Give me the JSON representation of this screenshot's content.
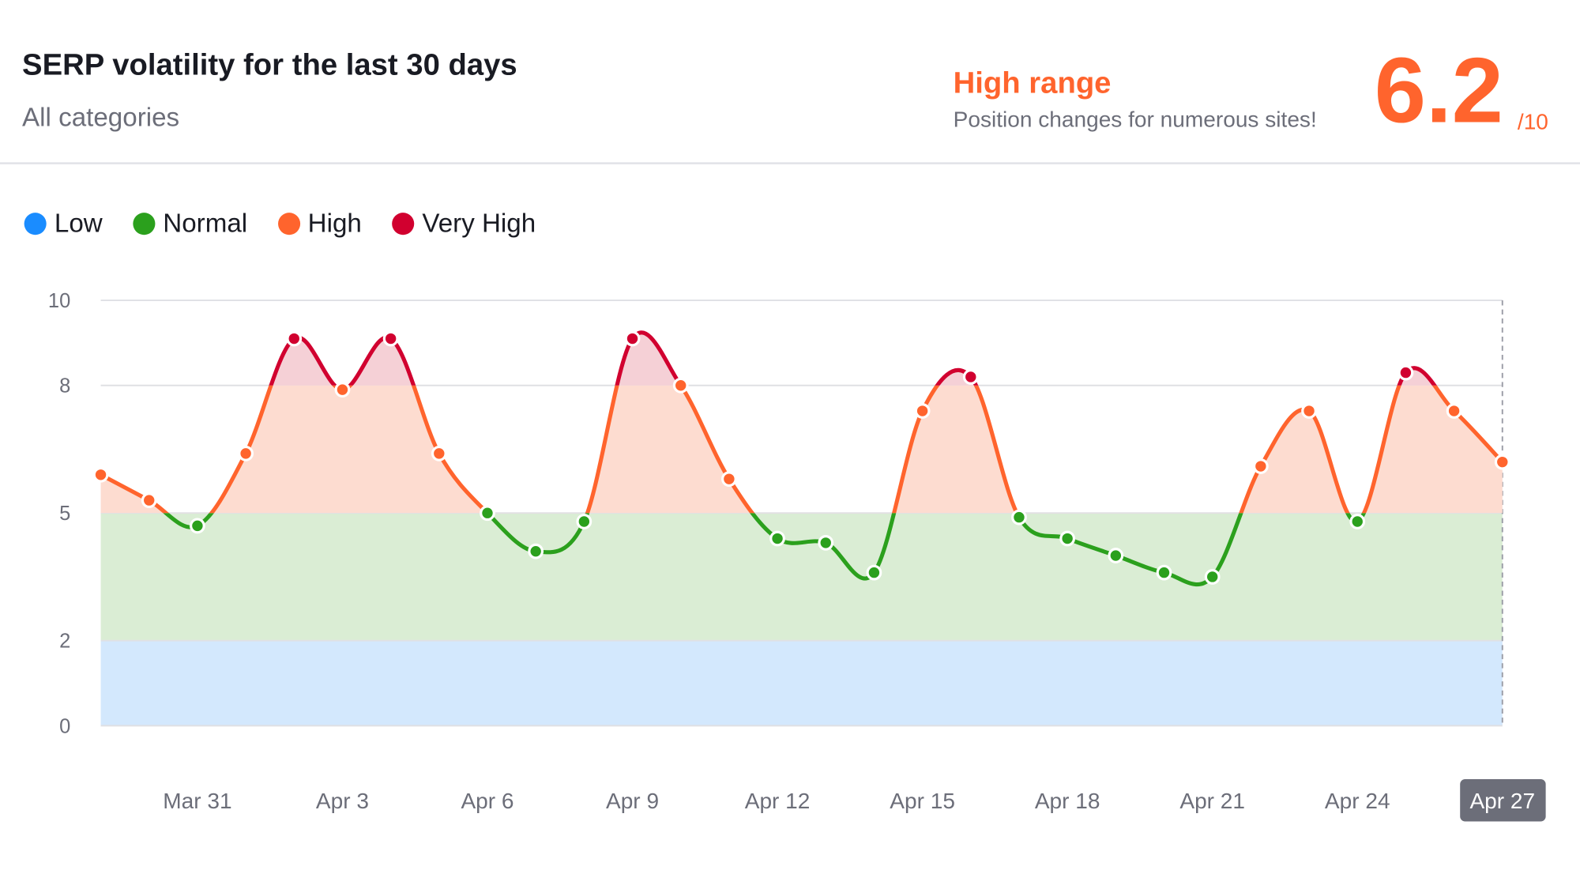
{
  "header": {
    "title": "SERP volatility for the last 30 days",
    "subtitle": "All categories",
    "range_label": "High range",
    "range_description": "Position changes for numerous sites!",
    "score": "6.2",
    "score_max": "/10"
  },
  "colors": {
    "low": "#1a8cff",
    "normal": "#2ba01d",
    "high": "#ff642d",
    "very_high": "#d1002f"
  },
  "chart_data": {
    "type": "line",
    "title": "SERP volatility for the last 30 days",
    "legend": [
      "Low",
      "Normal",
      "High",
      "Very High"
    ],
    "legend_position": "top-left",
    "ylim": [
      0,
      10
    ],
    "y_ticks": [
      "0",
      "2",
      "5",
      "8",
      "10"
    ],
    "bands": [
      {
        "name": "Low",
        "from": 0,
        "to": 2
      },
      {
        "name": "Normal",
        "from": 2,
        "to": 5
      },
      {
        "name": "High",
        "from": 5,
        "to": 8
      },
      {
        "name": "Very High",
        "from": 8,
        "to": 10
      }
    ],
    "x": [
      "Mar 29",
      "Mar 30",
      "Mar 31",
      "Apr 1",
      "Apr 2",
      "Apr 3",
      "Apr 4",
      "Apr 5",
      "Apr 6",
      "Apr 7",
      "Apr 8",
      "Apr 9",
      "Apr 10",
      "Apr 11",
      "Apr 12",
      "Apr 13",
      "Apr 14",
      "Apr 15",
      "Apr 16",
      "Apr 17",
      "Apr 18",
      "Apr 19",
      "Apr 20",
      "Apr 21",
      "Apr 22",
      "Apr 23",
      "Apr 24",
      "Apr 25",
      "Apr 26",
      "Apr 27"
    ],
    "values": [
      5.9,
      5.3,
      4.7,
      6.4,
      9.1,
      7.9,
      9.1,
      6.4,
      5.0,
      4.1,
      4.8,
      9.1,
      8.0,
      5.8,
      4.4,
      4.3,
      3.6,
      7.4,
      8.2,
      4.9,
      4.4,
      4.0,
      3.6,
      3.5,
      6.1,
      7.4,
      4.8,
      8.3,
      7.4,
      6.2
    ],
    "x_tick_labels": [
      "Mar 31",
      "Apr 3",
      "Apr 6",
      "Apr 9",
      "Apr 12",
      "Apr 15",
      "Apr 18",
      "Apr 21",
      "Apr 24",
      "Apr 27"
    ],
    "x_tick_indices": [
      2,
      5,
      8,
      11,
      14,
      17,
      20,
      23,
      26,
      29
    ],
    "highlighted": "Apr 27"
  }
}
